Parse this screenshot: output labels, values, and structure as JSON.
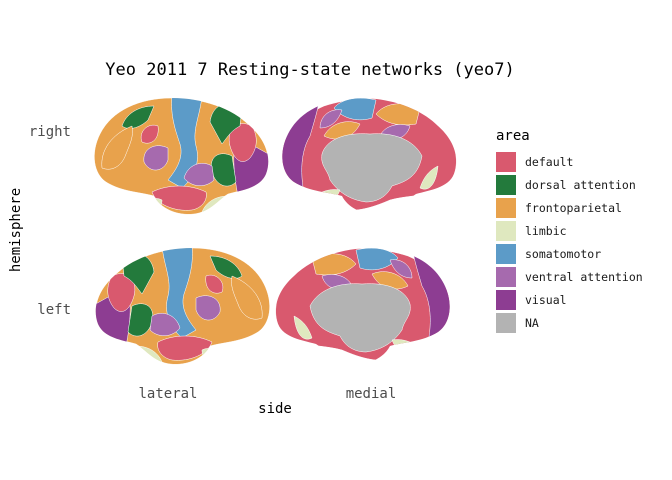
{
  "chart_data": {
    "type": "brain-atlas",
    "title": "Yeo 2011 7 Resting-state networks (yeo7)",
    "xlabel": "side",
    "ylabel": "hemisphere",
    "x_categories": [
      "lateral",
      "medial"
    ],
    "y_categories": [
      "right",
      "left"
    ],
    "legend": {
      "title": "area",
      "placement": "right",
      "items": [
        {
          "label": "default",
          "color": "#D9596E"
        },
        {
          "label": "dorsal attention",
          "color": "#237A3C"
        },
        {
          "label": "frontoparietal",
          "color": "#E8A24C"
        },
        {
          "label": "limbic",
          "color": "#DFE8BF"
        },
        {
          "label": "somatomotor",
          "color": "#5C9BC8"
        },
        {
          "label": "ventral attention",
          "color": "#A66AAE"
        },
        {
          "label": "visual",
          "color": "#8D3D92"
        },
        {
          "label": "NA",
          "color": "#B3B3B3"
        }
      ]
    },
    "panels": [
      {
        "hemisphere": "right",
        "side": "lateral"
      },
      {
        "hemisphere": "right",
        "side": "medial"
      },
      {
        "hemisphere": "left",
        "side": "lateral"
      },
      {
        "hemisphere": "left",
        "side": "medial"
      }
    ],
    "grid": false
  }
}
